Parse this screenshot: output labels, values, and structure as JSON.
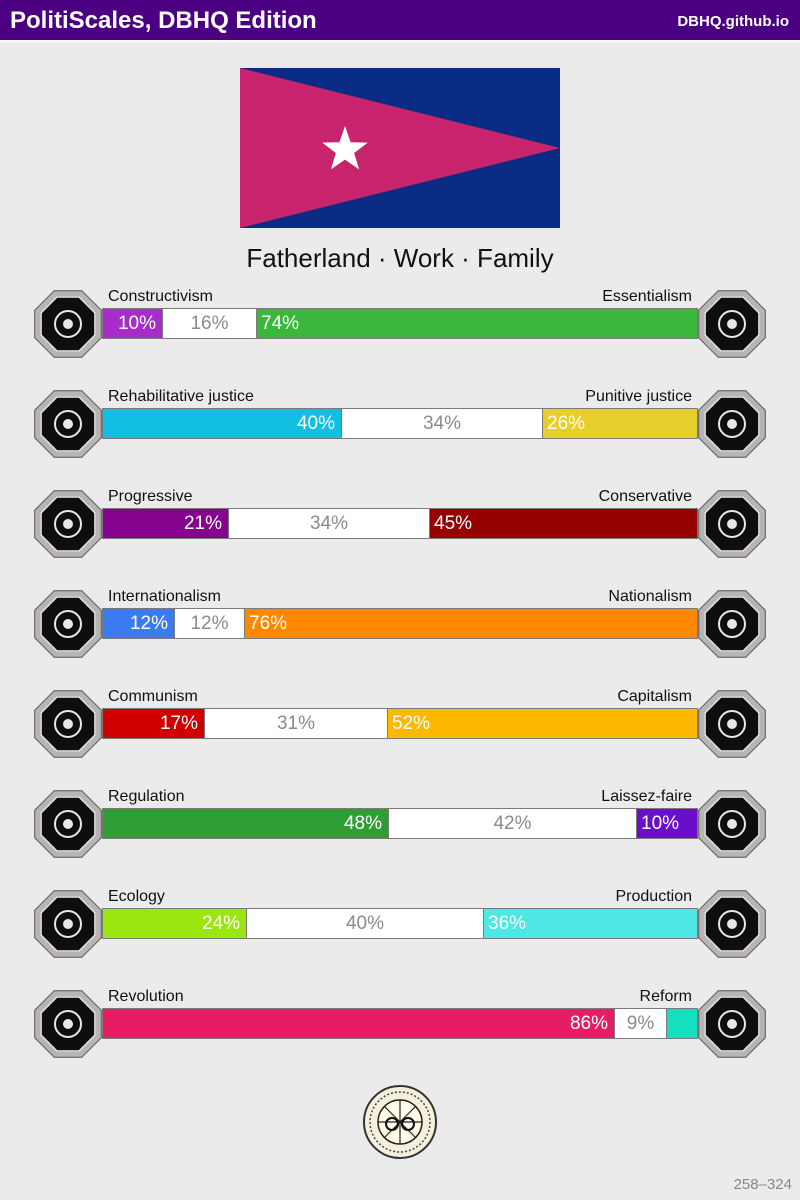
{
  "header": {
    "title": "PolitiScales, DBHQ Edition",
    "site": "DBHQ.github.io"
  },
  "flag": {
    "triangle_color": "#c8246e",
    "field_color": "#0a2c84",
    "star_color": "#ffffff"
  },
  "motto": "Fatherland · Work · Family",
  "axes": [
    {
      "left_label": "Constructivism",
      "right_label": "Essentialism",
      "left_icon": "eye-icon",
      "right_icon": "flower-icon",
      "left_value": 10,
      "middle_value": 16,
      "right_value": 74,
      "left_text": "10%",
      "middle_text": "16%",
      "right_text": "74%",
      "left_color": "#a82bcc",
      "right_color": "#3bb83b"
    },
    {
      "left_label": "Rehabilitative justice",
      "right_label": "Punitive justice",
      "left_icon": "handshake-icon",
      "right_icon": "prison-bars-icon",
      "left_value": 40,
      "middle_value": 34,
      "right_value": 26,
      "left_text": "40%",
      "middle_text": "34%",
      "right_text": "26%",
      "left_color": "#12bfe3",
      "right_color": "#e6cf2a"
    },
    {
      "left_label": "Progressive",
      "right_label": "Conservative",
      "left_icon": "rocket-icon",
      "right_icon": "quill-icon",
      "left_value": 21,
      "middle_value": 34,
      "right_value": 45,
      "left_text": "21%",
      "middle_text": "34%",
      "right_text": "45%",
      "left_color": "#85038f",
      "right_color": "#960000"
    },
    {
      "left_label": "Internationalism",
      "right_label": "Nationalism",
      "left_icon": "globe-icon",
      "right_icon": "flag-icon",
      "left_value": 12,
      "middle_value": 12,
      "right_value": 76,
      "left_text": "12%",
      "middle_text": "12%",
      "right_text": "76%",
      "left_color": "#3c7af0",
      "right_color": "#ff8800"
    },
    {
      "left_label": "Communism",
      "right_label": "Capitalism",
      "left_icon": "hammer-sickle-icon",
      "right_icon": "money-bag-icon",
      "left_value": 17,
      "middle_value": 31,
      "right_value": 52,
      "left_text": "17%",
      "middle_text": "31%",
      "right_text": "52%",
      "left_color": "#d10000",
      "right_color": "#ffb800"
    },
    {
      "left_label": "Regulation",
      "right_label": "Laissez-faire",
      "left_icon": "ruler-compass-icon",
      "right_icon": "butterfly-icon",
      "left_value": 48,
      "middle_value": 42,
      "right_value": 10,
      "left_text": "48%",
      "middle_text": "42%",
      "right_text": "10%",
      "left_color": "#2f9e35",
      "right_color": "#6a0ecc"
    },
    {
      "left_label": "Ecology",
      "right_label": "Production",
      "left_icon": "sprout-icon",
      "right_icon": "gear-icon",
      "left_value": 24,
      "middle_value": 40,
      "right_value": 36,
      "left_text": "24%",
      "middle_text": "40%",
      "right_text": "36%",
      "left_color": "#9ae60e",
      "right_color": "#4de8e3"
    },
    {
      "left_label": "Revolution",
      "right_label": "Reform",
      "left_icon": "fist-icon",
      "right_icon": "parliament-icon",
      "left_value": 86,
      "middle_value": 9,
      "right_value": 5,
      "left_text": "86%",
      "middle_text": "9%",
      "right_text": "",
      "left_color": "#e81c65",
      "right_color": "#14e0c0"
    }
  ],
  "seal_icon": "seal-icon",
  "footer_code": "258–324"
}
